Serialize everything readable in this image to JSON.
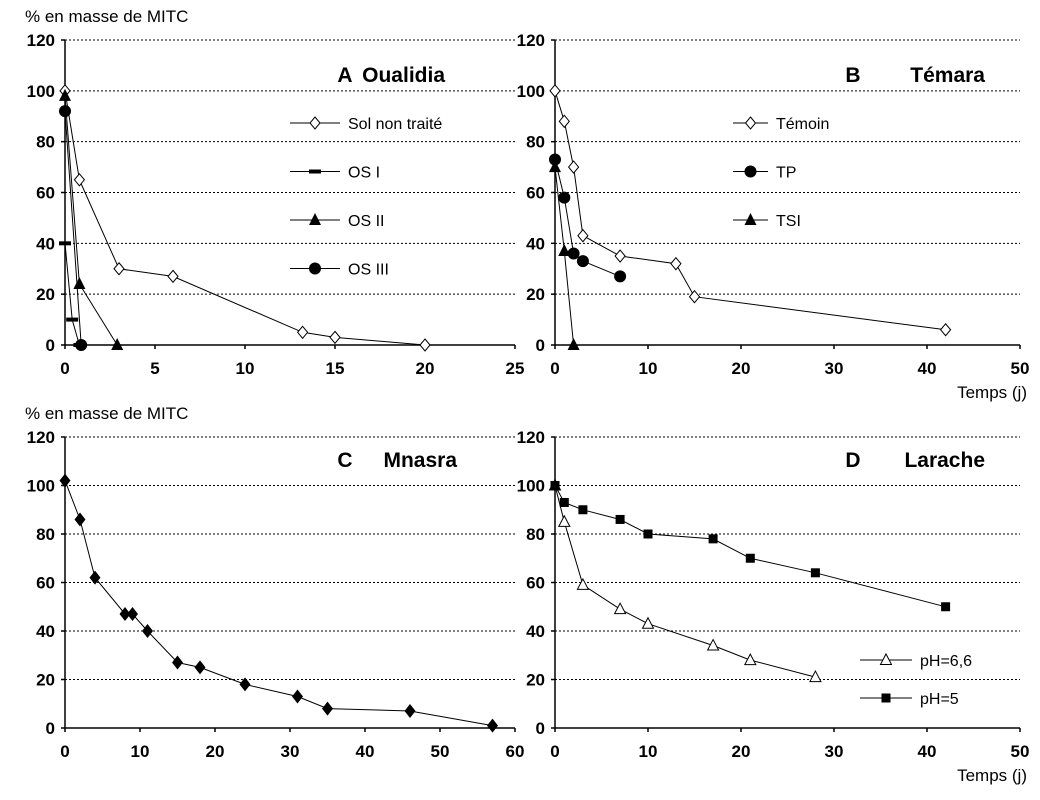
{
  "y_axis_title": "% en masse de MITC",
  "x_axis_title": "Temps (j)",
  "chart_data": [
    {
      "type": "line",
      "panel": "A",
      "site": "Oualidia",
      "xlabel": "",
      "ylabel": "% en masse de MITC",
      "xlim": [
        0,
        25
      ],
      "ylim": [
        0,
        120
      ],
      "xticks": [
        0,
        5,
        10,
        15,
        20,
        25
      ],
      "yticks": [
        0,
        20,
        40,
        60,
        80,
        100,
        120
      ],
      "grid": true,
      "legend_position": "top-right",
      "series": [
        {
          "name": "Sol non traité",
          "marker": "diamond-open",
          "x": [
            0,
            0.8,
            3,
            6,
            13.2,
            15,
            20
          ],
          "y": [
            100,
            65,
            30,
            27,
            5,
            3,
            0
          ]
        },
        {
          "name": "OS I",
          "marker": "dash",
          "x": [
            0,
            0.4,
            0.8
          ],
          "y": [
            40,
            10,
            0
          ]
        },
        {
          "name": "OS II",
          "marker": "triangle-filled",
          "x": [
            0,
            0.8,
            2.9
          ],
          "y": [
            98,
            24,
            0
          ]
        },
        {
          "name": "OS III",
          "marker": "circle-filled",
          "x": [
            0,
            0.9
          ],
          "y": [
            92,
            0
          ]
        }
      ]
    },
    {
      "type": "line",
      "panel": "B",
      "site": "Témara",
      "xlabel": "Temps (j)",
      "ylabel": "",
      "xlim": [
        0,
        50
      ],
      "ylim": [
        0,
        120
      ],
      "xticks": [
        0,
        10,
        20,
        30,
        40,
        50
      ],
      "yticks": [
        0,
        20,
        40,
        60,
        80,
        100,
        120
      ],
      "grid": true,
      "legend_position": "top-right",
      "series": [
        {
          "name": "Témoin",
          "marker": "diamond-open",
          "x": [
            0,
            1,
            2,
            3,
            7,
            13,
            15,
            42
          ],
          "y": [
            100,
            88,
            70,
            43,
            35,
            32,
            19,
            6
          ]
        },
        {
          "name": "TP",
          "marker": "circle-filled",
          "x": [
            0,
            1,
            2,
            3,
            7
          ],
          "y": [
            73,
            58,
            36,
            33,
            27
          ]
        },
        {
          "name": "TSI",
          "marker": "triangle-filled",
          "x": [
            0,
            1,
            2
          ],
          "y": [
            70,
            37,
            0
          ]
        }
      ]
    },
    {
      "type": "line",
      "panel": "C",
      "site": "Mnasra",
      "xlabel": "",
      "ylabel": "% en masse de MITC",
      "xlim": [
        0,
        60
      ],
      "ylim": [
        0,
        120
      ],
      "xticks": [
        0,
        10,
        20,
        30,
        40,
        50,
        60
      ],
      "yticks": [
        0,
        20,
        40,
        60,
        80,
        100,
        120
      ],
      "grid": true,
      "series": [
        {
          "name": "",
          "marker": "diamond-filled",
          "x": [
            0,
            2,
            4,
            8,
            9,
            11,
            15,
            18,
            24,
            31,
            35,
            46,
            57
          ],
          "y": [
            102,
            86,
            62,
            47,
            47,
            40,
            27,
            25,
            18,
            13,
            8,
            7,
            1
          ]
        }
      ]
    },
    {
      "type": "line",
      "panel": "D",
      "site": "Larache",
      "xlabel": "Temps (j)",
      "ylabel": "",
      "xlim": [
        0,
        50
      ],
      "ylim": [
        0,
        120
      ],
      "xticks": [
        0,
        10,
        20,
        30,
        40,
        50
      ],
      "yticks": [
        0,
        20,
        40,
        60,
        80,
        100,
        120
      ],
      "grid": true,
      "legend_position": "bottom-right",
      "series": [
        {
          "name": "pH=6,6",
          "marker": "triangle-open",
          "x": [
            0,
            1,
            3,
            7,
            10,
            17,
            21,
            28
          ],
          "y": [
            100,
            85,
            59,
            49,
            43,
            34,
            28,
            21
          ]
        },
        {
          "name": "pH=5",
          "marker": "square-filled",
          "x": [
            0,
            1,
            3,
            7,
            10,
            17,
            21,
            28,
            42
          ],
          "y": [
            100,
            93,
            90,
            86,
            80,
            78,
            70,
            64,
            50
          ]
        }
      ]
    }
  ]
}
